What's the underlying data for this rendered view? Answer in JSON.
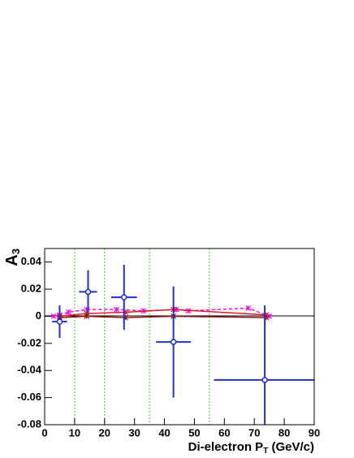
{
  "chart_data": {
    "type": "errorbar",
    "xlabel": {
      "text": "Di-electron P",
      "subscript": "T",
      "suffix": " (GeV/c)"
    },
    "ylabel": {
      "text": "A",
      "subscript": "3"
    },
    "xlim": [
      0,
      90
    ],
    "xticks": [
      0,
      10,
      20,
      30,
      40,
      50,
      60,
      70,
      80,
      90
    ],
    "ylim": [
      -0.08,
      0.05
    ],
    "yticks": [
      -0.08,
      -0.06,
      -0.04,
      -0.02,
      0,
      0.02,
      0.04
    ],
    "bin_edges": [
      10,
      20,
      35,
      55
    ],
    "series": [
      {
        "color": "#ff00ff",
        "style": "dashed",
        "x": [
          3,
          5,
          8,
          14,
          24,
          33,
          44,
          48,
          68,
          75
        ],
        "values": [
          0,
          0.001,
          0.003,
          0.005,
          0.005,
          0.004,
          0.005,
          0.004,
          0.006,
          0
        ]
      },
      {
        "color": "#e41a1c",
        "style": "solid",
        "x": [
          5,
          14,
          27,
          43,
          74
        ],
        "values": [
          0,
          0.002,
          0.003,
          0.005,
          0.001
        ]
      },
      {
        "color": "#8b1a1a",
        "style": "solid",
        "x": [
          5,
          14,
          27,
          43,
          74
        ],
        "values": [
          -0.001,
          0,
          -0.001,
          0,
          -0.001
        ]
      },
      {
        "color": "#1f2fd0",
        "style": "points",
        "x": [
          5,
          14.5,
          26.5,
          43,
          73.5
        ],
        "values": [
          -0.004,
          0.018,
          0.014,
          -0.019,
          -0.047
        ],
        "xerr": [
          2.5,
          3,
          4.3,
          5.8,
          17
        ],
        "yerr": [
          0.012,
          0.016,
          0.024,
          0.041,
          0.055
        ]
      }
    ]
  }
}
